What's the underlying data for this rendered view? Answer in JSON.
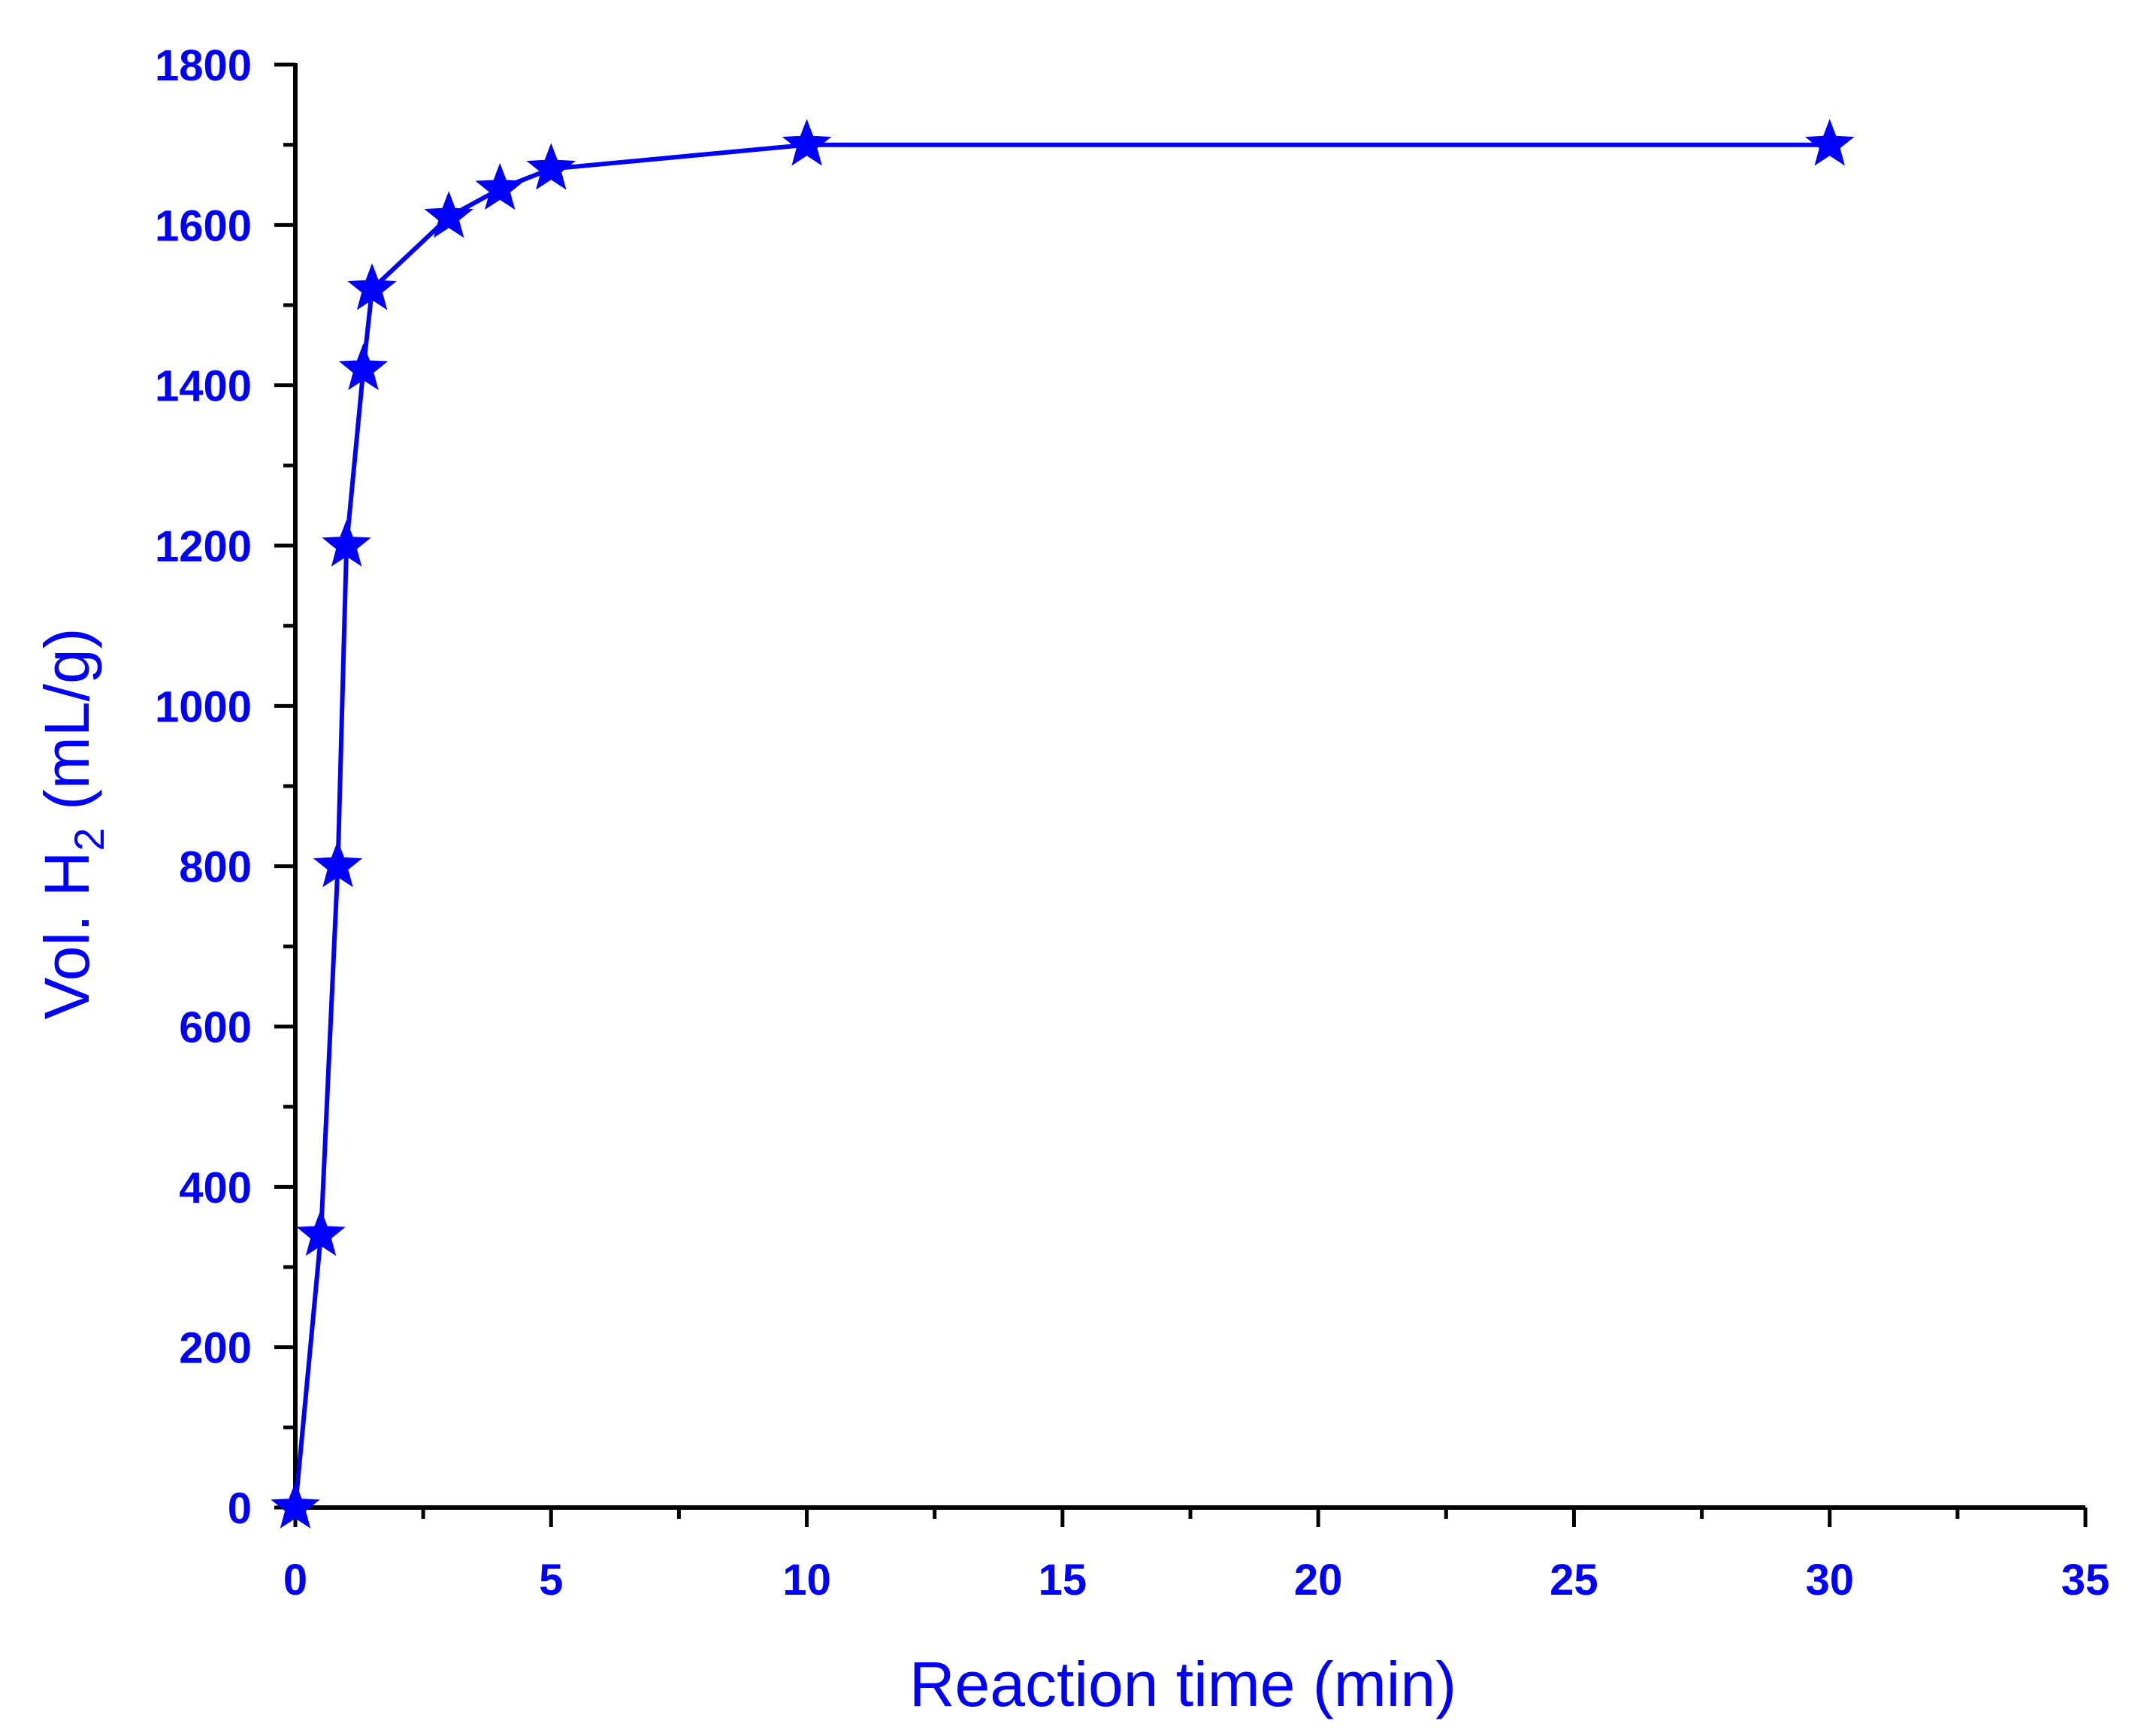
{
  "chart_data": {
    "type": "line",
    "xlabel": "Reaction time (min)",
    "ylabel": {
      "prefix": "Vol. H",
      "subscript": "2",
      "suffix": " (mL/g)"
    },
    "xlim": [
      0,
      35
    ],
    "ylim": [
      0,
      1800
    ],
    "x_ticks": [
      "0",
      "5",
      "10",
      "15",
      "20",
      "25",
      "30",
      "35"
    ],
    "y_ticks": [
      "0",
      "200",
      "400",
      "600",
      "800",
      "1000",
      "1200",
      "1400",
      "1600",
      "1800"
    ],
    "grid": false,
    "legend": "none",
    "marker": "star",
    "colors": {
      "series": "#0000ff",
      "axis": "#000000",
      "text": "#0000ff"
    },
    "series": [
      {
        "x": [
          0,
          0.5,
          0.83,
          1,
          1.33,
          1.5,
          3,
          4,
          5,
          10,
          30
        ],
        "y": [
          0,
          340,
          800,
          1200,
          1420,
          1520,
          1610,
          1645,
          1670,
          1700,
          1700
        ]
      }
    ]
  }
}
